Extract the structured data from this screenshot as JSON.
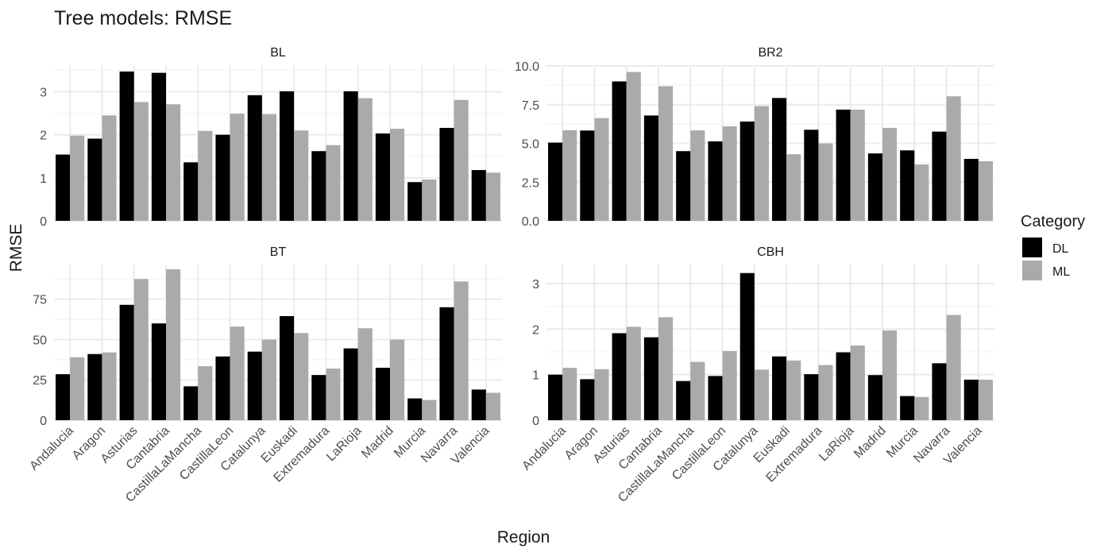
{
  "title": "Tree models: RMSE",
  "xlabel": "Region",
  "ylabel": "RMSE",
  "legend": {
    "title": "Category",
    "placement": "right",
    "items": [
      {
        "name": "DL",
        "color": "#000000"
      },
      {
        "name": "ML",
        "color": "#aaaaaa"
      }
    ]
  },
  "chart_data": {
    "type": "bar",
    "layout": "facet-grid-2x2",
    "categories": [
      "Andalucia",
      "Aragon",
      "Asturias",
      "Cantabria",
      "CastillaLaMancha",
      "CastillaLeon",
      "Catalunya",
      "Euskadi",
      "Extremadura",
      "LaRioja",
      "Madrid",
      "Murcia",
      "Navarra",
      "Valencia"
    ],
    "facets": [
      {
        "name": "BL",
        "ylim": [
          0,
          3.6
        ],
        "yticks": [
          0,
          1,
          2,
          3
        ],
        "ytick_labels": [
          "0",
          "1",
          "2",
          "3"
        ],
        "series": [
          {
            "name": "DL",
            "values": [
              1.54,
              1.91,
              3.47,
              3.44,
              1.36,
              2.0,
              2.92,
              3.01,
              1.62,
              3.01,
              2.03,
              0.9,
              2.16,
              1.18
            ]
          },
          {
            "name": "ML",
            "values": [
              1.98,
              2.45,
              2.76,
              2.71,
              2.09,
              2.49,
              2.48,
              2.1,
              1.76,
              2.85,
              2.14,
              0.96,
              2.81,
              1.12
            ]
          }
        ]
      },
      {
        "name": "BR2",
        "ylim": [
          0,
          10.0
        ],
        "yticks": [
          0,
          2.5,
          5,
          7.5,
          10
        ],
        "ytick_labels": [
          "0.0",
          "2.5",
          "5.0",
          "7.5",
          "10.0"
        ],
        "series": [
          {
            "name": "DL",
            "values": [
              5.05,
              5.83,
              9.0,
              6.8,
              4.5,
              5.13,
              6.41,
              7.93,
              5.88,
              7.18,
              4.35,
              4.55,
              5.76,
              4.0
            ]
          },
          {
            "name": "ML",
            "values": [
              5.85,
              6.63,
              9.61,
              8.69,
              5.84,
              6.1,
              7.41,
              4.3,
              5.0,
              7.18,
              6.0,
              3.64,
              8.04,
              3.85
            ]
          }
        ]
      },
      {
        "name": "BT",
        "ylim": [
          0,
          96
        ],
        "yticks": [
          0,
          25,
          50,
          75
        ],
        "ytick_labels": [
          "0",
          "25",
          "50",
          "75"
        ],
        "series": [
          {
            "name": "DL",
            "values": [
              28.5,
              41.0,
              71.5,
              60.0,
              21.0,
              39.5,
              42.5,
              64.5,
              28.0,
              44.5,
              32.5,
              13.5,
              70.0,
              19.0
            ]
          },
          {
            "name": "ML",
            "values": [
              39.0,
              42.0,
              87.5,
              93.5,
              33.5,
              58.0,
              50.0,
              54.0,
              32.0,
              57.0,
              50.0,
              12.5,
              86.0,
              17.0
            ]
          }
        ]
      },
      {
        "name": "CBH",
        "ylim": [
          0,
          3.4
        ],
        "yticks": [
          0,
          1,
          2,
          3
        ],
        "ytick_labels": [
          "0",
          "1",
          "2",
          "3"
        ],
        "series": [
          {
            "name": "DL",
            "values": [
              1.0,
              0.9,
              1.91,
              1.82,
              0.86,
              0.97,
              3.23,
              1.4,
              1.01,
              1.49,
              0.99,
              0.53,
              1.25,
              0.89
            ]
          },
          {
            "name": "ML",
            "values": [
              1.15,
              1.12,
              2.05,
              2.26,
              1.28,
              1.52,
              1.11,
              1.31,
              1.21,
              1.64,
              1.97,
              0.51,
              2.31,
              0.89
            ]
          }
        ]
      }
    ],
    "grid": true,
    "colors": {
      "DL": "#000000",
      "ML": "#aaaaaa",
      "grid_major": "#ebebeb",
      "grid_minor": "#f5f5f5",
      "text": "#4d4d4d",
      "title": "#1a1a1a"
    }
  }
}
